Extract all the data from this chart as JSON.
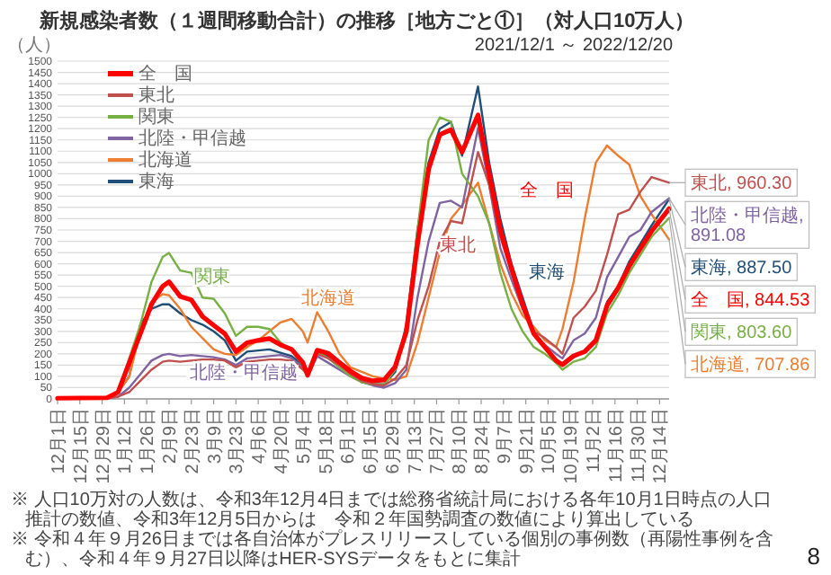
{
  "chart_data": {
    "type": "line",
    "title": "新規感染者数（１週間移動合計）の推移［地方ごと①］（対人口10万人）",
    "subtitle": "2021/12/1 ～ 2022/12/20",
    "ylabel": "（人）",
    "x": [
      "2021-12-01",
      "2021-12-15",
      "2022-01-01",
      "2022-01-08",
      "2022-01-15",
      "2022-01-22",
      "2022-01-29",
      "2022-02-05",
      "2022-02-09",
      "2022-02-16",
      "2022-02-23",
      "2022-03-02",
      "2022-03-09",
      "2022-03-16",
      "2022-03-23",
      "2022-03-30",
      "2022-04-06",
      "2022-04-13",
      "2022-04-20",
      "2022-04-27",
      "2022-05-04",
      "2022-05-07",
      "2022-05-13",
      "2022-05-20",
      "2022-05-27",
      "2022-06-03",
      "2022-06-10",
      "2022-06-17",
      "2022-06-24",
      "2022-07-01",
      "2022-07-08",
      "2022-07-15",
      "2022-07-22",
      "2022-07-29",
      "2022-08-05",
      "2022-08-12",
      "2022-08-22",
      "2022-08-29",
      "2022-09-05",
      "2022-09-12",
      "2022-09-19",
      "2022-09-26",
      "2022-10-03",
      "2022-10-10",
      "2022-10-14",
      "2022-10-21",
      "2022-10-28",
      "2022-11-04",
      "2022-11-11",
      "2022-11-18",
      "2022-11-25",
      "2022-12-02",
      "2022-12-09",
      "2022-12-20"
    ],
    "series": [
      {
        "name": "全　国",
        "color": "#ff0000",
        "values": [
          3,
          4,
          5,
          30,
          160,
          290,
          420,
          500,
          520,
          455,
          440,
          366,
          327,
          290,
          210,
          249,
          260,
          268,
          240,
          220,
          162,
          105,
          216,
          202,
          162,
          123,
          93,
          80,
          84,
          143,
          298,
          687,
          1020,
          1173,
          1195,
          1096,
          1261,
          1000,
          750,
          580,
          420,
          290,
          230,
          170,
          152,
          191,
          210,
          260,
          414,
          493,
          590,
          668,
          745,
          844.53
        ],
        "value_labels": [
          null,
          null,
          null,
          null,
          null,
          null,
          null,
          null,
          null,
          null,
          null,
          null,
          null,
          null,
          null,
          null,
          null,
          null,
          null,
          null,
          null,
          null,
          null,
          null,
          null,
          null,
          null,
          null,
          null,
          null,
          null,
          null,
          null,
          null,
          null,
          null,
          null,
          null,
          null,
          null,
          null,
          null,
          null,
          null,
          null,
          null,
          null,
          null,
          null,
          null,
          null,
          null,
          null,
          "全　国, 844.53"
        ]
      },
      {
        "name": "東北",
        "color": "#c0504d",
        "values": [
          2,
          2,
          3,
          10,
          30,
          80,
          130,
          165,
          170,
          165,
          170,
          175,
          175,
          170,
          140,
          165,
          170,
          175,
          175,
          170,
          130,
          110,
          200,
          180,
          150,
          110,
          80,
          65,
          60,
          90,
          150,
          350,
          500,
          700,
          790,
          780,
          1096,
          950,
          720,
          560,
          420,
          300,
          270,
          230,
          200,
          360,
          410,
          480,
          640,
          820,
          840,
          920,
          985,
          960.3
        ],
        "value_labels": [
          null,
          null,
          null,
          null,
          null,
          null,
          null,
          null,
          null,
          null,
          null,
          null,
          null,
          null,
          null,
          null,
          null,
          null,
          null,
          null,
          null,
          null,
          null,
          null,
          null,
          null,
          null,
          null,
          null,
          null,
          null,
          null,
          null,
          null,
          null,
          null,
          null,
          null,
          null,
          null,
          null,
          null,
          null,
          null,
          null,
          null,
          null,
          null,
          null,
          null,
          null,
          null,
          null,
          "東北, 960.30"
        ]
      },
      {
        "name": "関東",
        "color": "#77b043",
        "values": [
          null,
          null,
          null,
          30,
          180,
          330,
          520,
          630,
          648,
          570,
          560,
          450,
          445,
          380,
          280,
          320,
          320,
          310,
          250,
          215,
          150,
          100,
          210,
          180,
          140,
          100,
          75,
          65,
          65,
          130,
          320,
          750,
          1150,
          1250,
          1230,
          1000,
          900,
          780,
          560,
          400,
          300,
          230,
          200,
          160,
          130,
          165,
          180,
          230,
          380,
          460,
          560,
          640,
          720,
          803.6
        ],
        "value_labels": [
          null,
          null,
          null,
          null,
          null,
          null,
          null,
          null,
          null,
          null,
          null,
          null,
          null,
          null,
          null,
          null,
          null,
          null,
          null,
          null,
          null,
          null,
          null,
          null,
          null,
          null,
          null,
          null,
          null,
          null,
          null,
          null,
          null,
          null,
          null,
          null,
          null,
          null,
          null,
          null,
          null,
          null,
          null,
          null,
          null,
          null,
          null,
          null,
          null,
          null,
          null,
          null,
          null,
          "関東, 803.60"
        ]
      },
      {
        "name": "北陸・甲信越",
        "color": "#8064a2",
        "values": [
          2,
          2,
          3,
          10,
          50,
          110,
          170,
          195,
          200,
          190,
          195,
          190,
          185,
          175,
          150,
          180,
          185,
          190,
          195,
          180,
          140,
          100,
          190,
          160,
          130,
          100,
          75,
          60,
          50,
          70,
          130,
          450,
          700,
          870,
          880,
          850,
          1203,
          950,
          670,
          530,
          400,
          290,
          240,
          200,
          180,
          260,
          290,
          360,
          540,
          630,
          720,
          750,
          830,
          891.08
        ],
        "value_labels": [
          null,
          null,
          null,
          null,
          null,
          null,
          null,
          null,
          null,
          null,
          null,
          null,
          null,
          null,
          null,
          null,
          null,
          null,
          null,
          null,
          null,
          null,
          null,
          null,
          null,
          null,
          null,
          null,
          null,
          null,
          null,
          null,
          null,
          null,
          null,
          null,
          null,
          null,
          null,
          null,
          null,
          null,
          null,
          null,
          null,
          null,
          null,
          null,
          null,
          null,
          null,
          null,
          null,
          "北陸・甲信越, 891.08"
        ]
      },
      {
        "name": "北海道",
        "color": "#ed7d31",
        "values": [
          2,
          2,
          4,
          30,
          100,
          300,
          430,
          465,
          460,
          400,
          320,
          270,
          220,
          200,
          195,
          230,
          260,
          300,
          340,
          355,
          300,
          250,
          385,
          300,
          200,
          140,
          120,
          100,
          90,
          85,
          100,
          250,
          450,
          650,
          800,
          860,
          960,
          780,
          600,
          470,
          370,
          320,
          260,
          230,
          310,
          520,
          800,
          1050,
          1125,
          1080,
          1040,
          900,
          820,
          707.86
        ],
        "value_labels": [
          null,
          null,
          null,
          null,
          null,
          null,
          null,
          null,
          null,
          null,
          null,
          null,
          null,
          null,
          null,
          null,
          null,
          null,
          null,
          null,
          null,
          null,
          null,
          null,
          null,
          null,
          null,
          null,
          null,
          null,
          null,
          null,
          null,
          null,
          null,
          null,
          null,
          null,
          null,
          null,
          null,
          null,
          null,
          null,
          null,
          null,
          null,
          null,
          null,
          null,
          null,
          null,
          null,
          "北海道, 707.86"
        ]
      },
      {
        "name": "東海",
        "color": "#1f4e79",
        "values": [
          2,
          3,
          4,
          30,
          100,
          330,
          400,
          420,
          420,
          380,
          350,
          330,
          300,
          260,
          170,
          210,
          215,
          220,
          205,
          190,
          150,
          100,
          210,
          190,
          165,
          110,
          75,
          65,
          65,
          120,
          330,
          750,
          1050,
          1200,
          1230,
          1080,
          1387,
          1050,
          800,
          600,
          450,
          300,
          230,
          170,
          150,
          185,
          210,
          260,
          430,
          500,
          610,
          690,
          770,
          887.5
        ],
        "value_labels": [
          null,
          null,
          null,
          null,
          null,
          null,
          null,
          null,
          null,
          null,
          null,
          null,
          null,
          null,
          null,
          null,
          null,
          null,
          null,
          null,
          null,
          null,
          null,
          null,
          null,
          null,
          null,
          null,
          null,
          null,
          null,
          null,
          null,
          null,
          null,
          null,
          null,
          null,
          null,
          null,
          null,
          null,
          null,
          null,
          null,
          null,
          null,
          null,
          null,
          null,
          null,
          null,
          null,
          "東海, 887.50"
        ]
      }
    ],
    "xlim": [
      "2021-12-01",
      "2022-12-20"
    ],
    "xticks": [
      {
        "value": "2021-12-01",
        "label": "12月1日"
      },
      {
        "value": "2021-12-15",
        "label": "12月15日"
      },
      {
        "value": "2021-12-29",
        "label": "12月29日"
      },
      {
        "value": "2022-01-12",
        "label": "1月12日"
      },
      {
        "value": "2022-01-26",
        "label": "1月26日"
      },
      {
        "value": "2022-02-09",
        "label": "2月9日"
      },
      {
        "value": "2022-02-23",
        "label": "2月23日"
      },
      {
        "value": "2022-03-09",
        "label": "3月9日"
      },
      {
        "value": "2022-03-23",
        "label": "3月23日"
      },
      {
        "value": "2022-04-06",
        "label": "4月6日"
      },
      {
        "value": "2022-04-20",
        "label": "4月20日"
      },
      {
        "value": "2022-05-04",
        "label": "5月4日"
      },
      {
        "value": "2022-05-18",
        "label": "5月18日"
      },
      {
        "value": "2022-06-01",
        "label": "6月1日"
      },
      {
        "value": "2022-06-15",
        "label": "6月15日"
      },
      {
        "value": "2022-06-29",
        "label": "6月29日"
      },
      {
        "value": "2022-07-13",
        "label": "7月13日"
      },
      {
        "value": "2022-07-27",
        "label": "7月27日"
      },
      {
        "value": "2022-08-10",
        "label": "8月10日"
      },
      {
        "value": "2022-08-24",
        "label": "8月24日"
      },
      {
        "value": "2022-09-07",
        "label": "9月7日"
      },
      {
        "value": "2022-09-21",
        "label": "9月21日"
      },
      {
        "value": "2022-10-05",
        "label": "10月5日"
      },
      {
        "value": "2022-10-19",
        "label": "10月19日"
      },
      {
        "value": "2022-11-02",
        "label": "11月2日"
      },
      {
        "value": "2022-11-16",
        "label": "11月16日"
      },
      {
        "value": "2022-11-30",
        "label": "11月30日"
      },
      {
        "value": "2022-12-14",
        "label": "12月14日"
      }
    ],
    "ylim": [
      0,
      1500
    ],
    "yticks": [
      0,
      50,
      100,
      150,
      200,
      250,
      300,
      350,
      400,
      450,
      500,
      550,
      600,
      650,
      700,
      750,
      800,
      850,
      900,
      950,
      1000,
      1050,
      1100,
      1150,
      1200,
      1250,
      1300,
      1350,
      1400,
      1450,
      1500
    ],
    "grid": "y",
    "legend": "top left",
    "annotations": [
      "関東",
      "北海道",
      "北陸・甲信越",
      "全　国",
      "東北",
      "東海",
      "※ 人口10万対の人数は、令和3年12月4日までは総務省統計局における各年10月1日時点の人口推計の数値、令和3年12月5日からは　令和２年国勢調査の数値により算出している",
      "※ 令和４年９月26日までは各自治体がプレスリリースしている個別の事例数（再陽性事例を含む）、令和４年９月27日以降はHER-SYSデータをもとに集計",
      "8"
    ]
  }
}
